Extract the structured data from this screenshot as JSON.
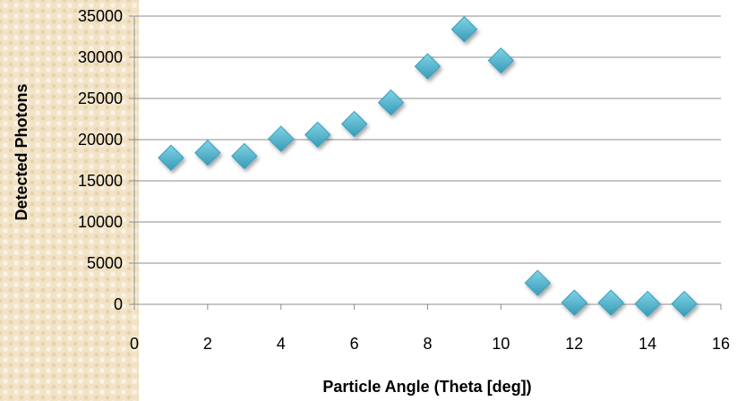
{
  "chart_data": {
    "type": "scatter",
    "title": "",
    "xlabel": "Particle Angle (Theta [deg])",
    "ylabel": "Detected Photons",
    "xlim": [
      0,
      16
    ],
    "ylim": [
      0,
      35000
    ],
    "xticks": [
      0,
      2,
      4,
      6,
      8,
      10,
      12,
      14,
      16
    ],
    "yticks": [
      0,
      5000,
      10000,
      15000,
      20000,
      25000,
      30000,
      35000
    ],
    "grid": "horizontal",
    "marker": "diamond",
    "series": [
      {
        "x": [
          1,
          2,
          3,
          4,
          5,
          6,
          7,
          8,
          9,
          10,
          11,
          12,
          13,
          14,
          15
        ],
        "y": [
          17800,
          18400,
          18000,
          20100,
          20600,
          21900,
          24500,
          28900,
          33400,
          29600,
          2600,
          200,
          200,
          50,
          50
        ],
        "color": "#4bacc6"
      }
    ]
  }
}
